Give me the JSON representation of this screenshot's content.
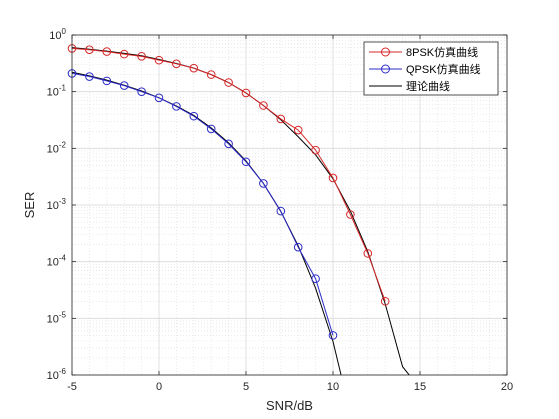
{
  "chart_data": {
    "type": "line",
    "xlabel": "SNR/dB",
    "ylabel": "SER",
    "xlim": [
      -5,
      20
    ],
    "ylim": [
      1e-06,
      1
    ],
    "yscale": "log",
    "grid": true,
    "x_ticks": [
      "-5",
      "0",
      "5",
      "10",
      "15",
      "20"
    ],
    "y_ticks": [
      {
        "base": "10",
        "exp": "0"
      },
      {
        "base": "10",
        "exp": "-1"
      },
      {
        "base": "10",
        "exp": "-2"
      },
      {
        "base": "10",
        "exp": "-3"
      },
      {
        "base": "10",
        "exp": "-4"
      },
      {
        "base": "10",
        "exp": "-5"
      },
      {
        "base": "10",
        "exp": "-6"
      }
    ],
    "legend_position": "top-right",
    "series": [
      {
        "name": "8PSK仿真曲线",
        "color": "#d62728",
        "marker": "circle",
        "x": [
          -5,
          -4,
          -3,
          -2,
          -1,
          0,
          1,
          2,
          3,
          4,
          5,
          6,
          7,
          8,
          9,
          10,
          11,
          12,
          13
        ],
        "y": [
          0.58,
          0.55,
          0.51,
          0.46,
          0.42,
          0.36,
          0.31,
          0.26,
          0.2,
          0.145,
          0.095,
          0.057,
          0.033,
          0.021,
          0.0093,
          0.003,
          0.00068,
          0.00014,
          2e-05
        ]
      },
      {
        "name": "QPSK仿真曲线",
        "color": "#2b2bc8",
        "marker": "circle",
        "x": [
          -5,
          -4,
          -3,
          -2,
          -1,
          0,
          1,
          2,
          3,
          4,
          5,
          6,
          7,
          8,
          9,
          10
        ],
        "y": [
          0.21,
          0.185,
          0.155,
          0.128,
          0.1,
          0.078,
          0.055,
          0.037,
          0.022,
          0.012,
          0.0058,
          0.0024,
          0.00078,
          0.00018,
          5e-05,
          5e-06
        ]
      },
      {
        "name": "理论曲线",
        "color": "#000000",
        "marker": "none",
        "segments": [
          {
            "x": [
              -5,
              -4,
              -3,
              -2,
              -1,
              0,
              1,
              2,
              3,
              4,
              5,
              6,
              7,
              8,
              9,
              10,
              11,
              12,
              13,
              14,
              14.5
            ],
            "y": [
              0.6,
              0.56,
              0.52,
              0.475,
              0.43,
              0.37,
              0.315,
              0.26,
              0.2,
              0.145,
              0.095,
              0.057,
              0.032,
              0.016,
              0.0077,
              0.0029,
              0.00078,
              0.00015,
              1.8e-05,
              1.4e-06,
              9e-07
            ]
          },
          {
            "x": [
              -5,
              -4,
              -3,
              -2,
              -1,
              0,
              1,
              2,
              3,
              4,
              5,
              6,
              7,
              8,
              9,
              10,
              10.5
            ],
            "y": [
              0.22,
              0.19,
              0.16,
              0.13,
              0.103,
              0.078,
              0.056,
              0.038,
              0.023,
              0.0125,
              0.006,
              0.0024,
              0.00077,
              0.00019,
              3.4e-05,
              3.9e-06,
              9e-07
            ]
          }
        ]
      }
    ]
  }
}
